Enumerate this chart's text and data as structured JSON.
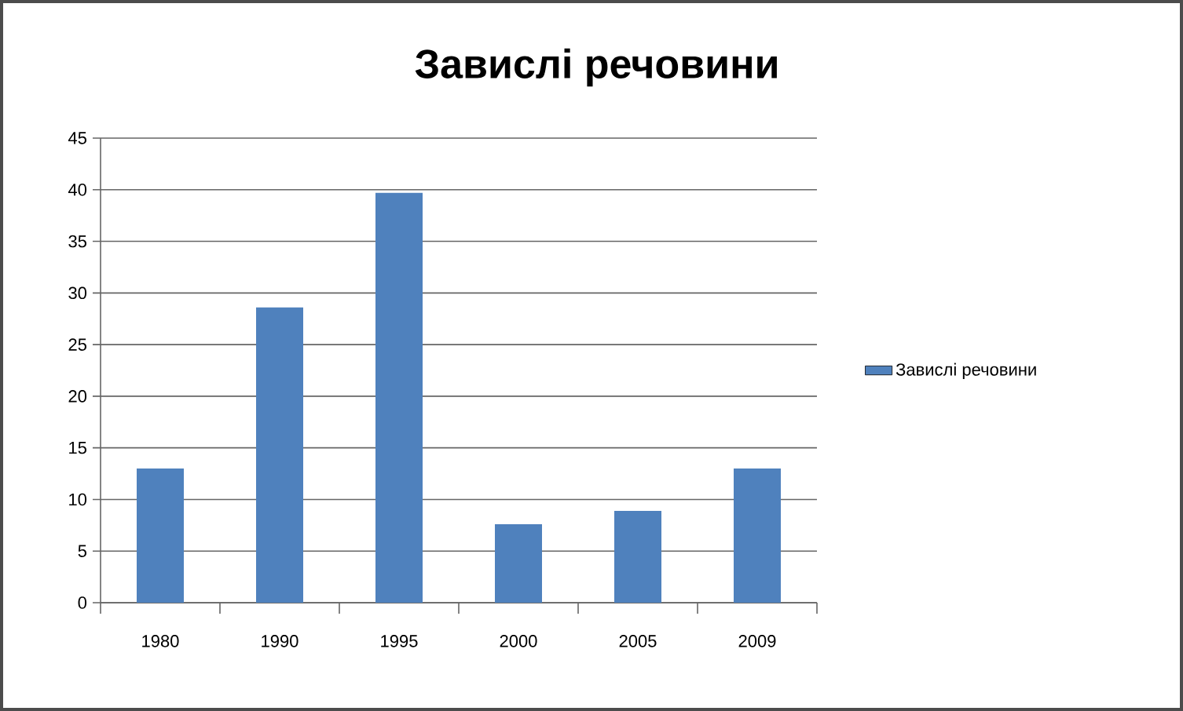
{
  "chart_data": {
    "type": "bar",
    "title": "Завислі речовини",
    "categories": [
      "1980",
      "1990",
      "1995",
      "2000",
      "2005",
      "2009"
    ],
    "series": [
      {
        "name": "Завислі речовини",
        "color": "#4f81bd",
        "values": [
          13.0,
          28.6,
          39.7,
          7.6,
          8.9,
          13.0
        ]
      }
    ],
    "ylim": [
      0,
      45
    ],
    "yticks": [
      0,
      5,
      10,
      15,
      20,
      25,
      30,
      35,
      40,
      45
    ],
    "grid": "y",
    "legend": "right"
  }
}
